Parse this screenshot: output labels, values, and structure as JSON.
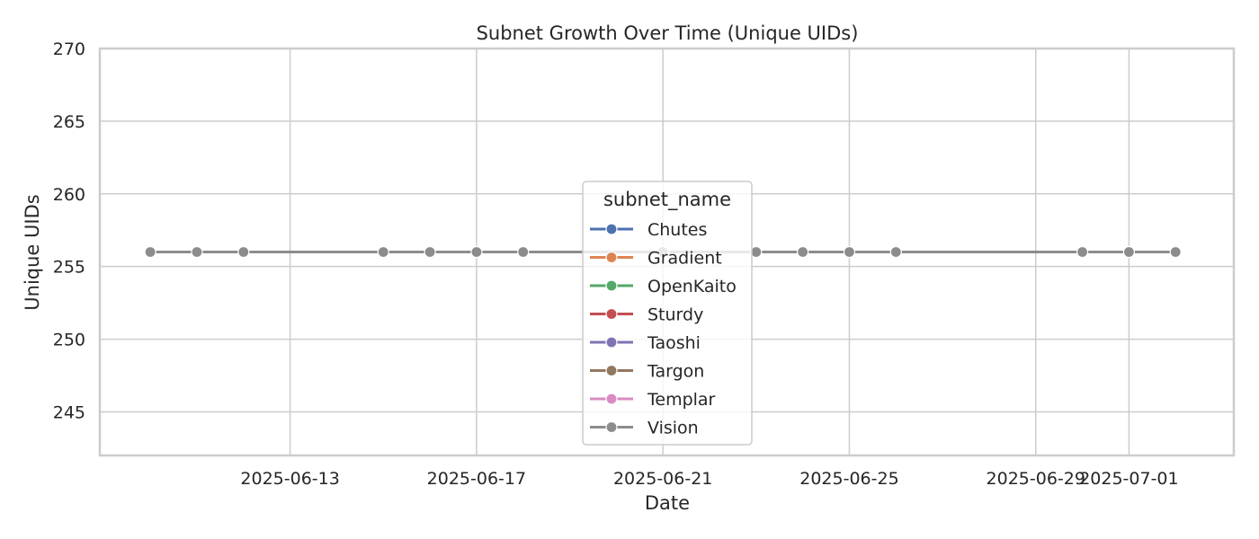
{
  "chart_data": {
    "type": "line",
    "title": "Subnet Growth Over Time (Unique UIDs)",
    "xlabel": "Date",
    "ylabel": "Unique UIDs",
    "ylim": [
      242,
      270
    ],
    "xlim": [
      "2025-06-08T22:00",
      "2025-07-03T06:00"
    ],
    "yticks": [
      245,
      250,
      255,
      260,
      265,
      270
    ],
    "xticks": [
      "2025-06-13",
      "2025-06-17",
      "2025-06-21",
      "2025-06-25",
      "2025-06-29",
      "2025-07-01"
    ],
    "grid": true,
    "legend": {
      "title": "subnet_name",
      "placement": "center",
      "entries": [
        {
          "name": "Chutes",
          "color": "#4c72b0"
        },
        {
          "name": "Gradient",
          "color": "#dd8452"
        },
        {
          "name": "OpenKaito",
          "color": "#55a868"
        },
        {
          "name": "Sturdy",
          "color": "#c44e52"
        },
        {
          "name": "Taoshi",
          "color": "#8172b3"
        },
        {
          "name": "Targon",
          "color": "#937860"
        },
        {
          "name": "Templar",
          "color": "#da8bc3"
        },
        {
          "name": "Vision",
          "color": "#8c8c8c"
        }
      ]
    },
    "x": [
      "2025-06-10",
      "2025-06-11",
      "2025-06-12",
      "2025-06-15",
      "2025-06-16",
      "2025-06-17",
      "2025-06-18",
      "2025-06-21",
      "2025-06-23",
      "2025-06-24",
      "2025-06-25",
      "2025-06-26",
      "2025-06-30",
      "2025-07-01",
      "2025-07-02"
    ],
    "series": [
      {
        "name": "Chutes",
        "values": [
          256,
          256,
          256,
          256,
          256,
          256,
          256,
          256,
          256,
          256,
          256,
          256,
          256,
          256,
          256
        ]
      },
      {
        "name": "Gradient",
        "values": [
          256,
          256,
          256,
          256,
          256,
          256,
          256,
          256,
          256,
          256,
          256,
          256,
          256,
          256,
          256
        ]
      },
      {
        "name": "OpenKaito",
        "values": [
          256,
          256,
          256,
          256,
          256,
          256,
          256,
          256,
          256,
          256,
          256,
          256,
          256,
          256,
          256
        ]
      },
      {
        "name": "Sturdy",
        "values": [
          256,
          256,
          256,
          256,
          256,
          256,
          256,
          256,
          256,
          256,
          256,
          256,
          256,
          256,
          256
        ]
      },
      {
        "name": "Taoshi",
        "values": [
          256,
          256,
          256,
          256,
          256,
          256,
          256,
          256,
          256,
          256,
          256,
          256,
          256,
          256,
          256
        ]
      },
      {
        "name": "Targon",
        "values": [
          256,
          256,
          256,
          256,
          256,
          256,
          256,
          256,
          256,
          256,
          256,
          256,
          256,
          256,
          256
        ]
      },
      {
        "name": "Templar",
        "values": [
          256,
          256,
          256,
          256,
          256,
          256,
          256,
          256,
          256,
          256,
          256,
          256,
          256,
          256,
          256
        ]
      },
      {
        "name": "Vision",
        "values": [
          256,
          256,
          256,
          256,
          256,
          256,
          256,
          256,
          256,
          256,
          256,
          256,
          256,
          256,
          256
        ]
      }
    ]
  }
}
